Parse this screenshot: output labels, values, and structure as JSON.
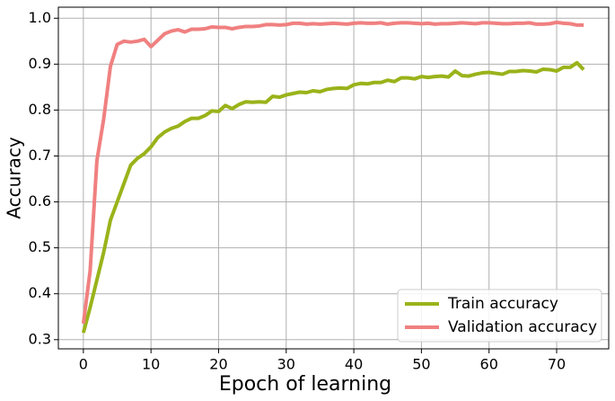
{
  "chart_data": {
    "type": "line",
    "x_label": "Epoch of learning",
    "y_label": "Accuracy",
    "x": [
      0,
      1,
      2,
      3,
      4,
      5,
      6,
      7,
      8,
      9,
      10,
      11,
      12,
      13,
      14,
      15,
      16,
      17,
      18,
      19,
      20,
      21,
      22,
      23,
      24,
      25,
      26,
      27,
      28,
      29,
      30,
      31,
      32,
      33,
      34,
      35,
      36,
      37,
      38,
      39,
      40,
      41,
      42,
      43,
      44,
      45,
      46,
      47,
      48,
      49,
      50,
      51,
      52,
      53,
      54,
      55,
      56,
      57,
      58,
      59,
      60,
      61,
      62,
      63,
      64,
      65,
      66,
      67,
      68,
      69,
      70,
      71,
      72,
      73,
      74
    ],
    "series": [
      {
        "name": "Train accuracy",
        "color": "#99b31a",
        "values": [
          0.315,
          0.37,
          0.43,
          0.49,
          0.56,
          0.6,
          0.64,
          0.68,
          0.695,
          0.705,
          0.72,
          0.74,
          0.752,
          0.76,
          0.765,
          0.775,
          0.782,
          0.782,
          0.788,
          0.798,
          0.797,
          0.81,
          0.803,
          0.812,
          0.818,
          0.817,
          0.818,
          0.817,
          0.83,
          0.828,
          0.833,
          0.836,
          0.839,
          0.838,
          0.842,
          0.84,
          0.845,
          0.847,
          0.848,
          0.847,
          0.855,
          0.858,
          0.857,
          0.86,
          0.86,
          0.865,
          0.862,
          0.87,
          0.87,
          0.868,
          0.873,
          0.871,
          0.873,
          0.874,
          0.872,
          0.885,
          0.875,
          0.874,
          0.878,
          0.881,
          0.882,
          0.88,
          0.878,
          0.884,
          0.884,
          0.886,
          0.885,
          0.883,
          0.889,
          0.888,
          0.885,
          0.893,
          0.893,
          0.903,
          0.888
        ]
      },
      {
        "name": "Validation accuracy",
        "color": "#f08080",
        "values": [
          0.335,
          0.45,
          0.69,
          0.78,
          0.895,
          0.943,
          0.95,
          0.948,
          0.95,
          0.954,
          0.938,
          0.952,
          0.966,
          0.972,
          0.975,
          0.97,
          0.976,
          0.976,
          0.977,
          0.981,
          0.98,
          0.98,
          0.977,
          0.98,
          0.982,
          0.982,
          0.983,
          0.986,
          0.986,
          0.985,
          0.986,
          0.989,
          0.989,
          0.987,
          0.988,
          0.987,
          0.988,
          0.989,
          0.988,
          0.987,
          0.989,
          0.99,
          0.989,
          0.989,
          0.99,
          0.987,
          0.989,
          0.99,
          0.99,
          0.989,
          0.988,
          0.989,
          0.987,
          0.988,
          0.988,
          0.989,
          0.99,
          0.989,
          0.988,
          0.99,
          0.99,
          0.989,
          0.988,
          0.988,
          0.989,
          0.989,
          0.99,
          0.987,
          0.987,
          0.988,
          0.991,
          0.989,
          0.988,
          0.985,
          0.985
        ]
      }
    ],
    "xlim": [
      -3.7,
      77.7
    ],
    "ylim": [
      0.28,
      1.024
    ],
    "xticks": [
      0,
      10,
      20,
      30,
      40,
      50,
      60,
      70
    ],
    "yticks": [
      0.3,
      0.4,
      0.5,
      0.6,
      0.7,
      0.8,
      0.9,
      {
        "value": 1,
        "label": "1.0"
      }
    ],
    "grid": true,
    "legend": "lower right"
  }
}
